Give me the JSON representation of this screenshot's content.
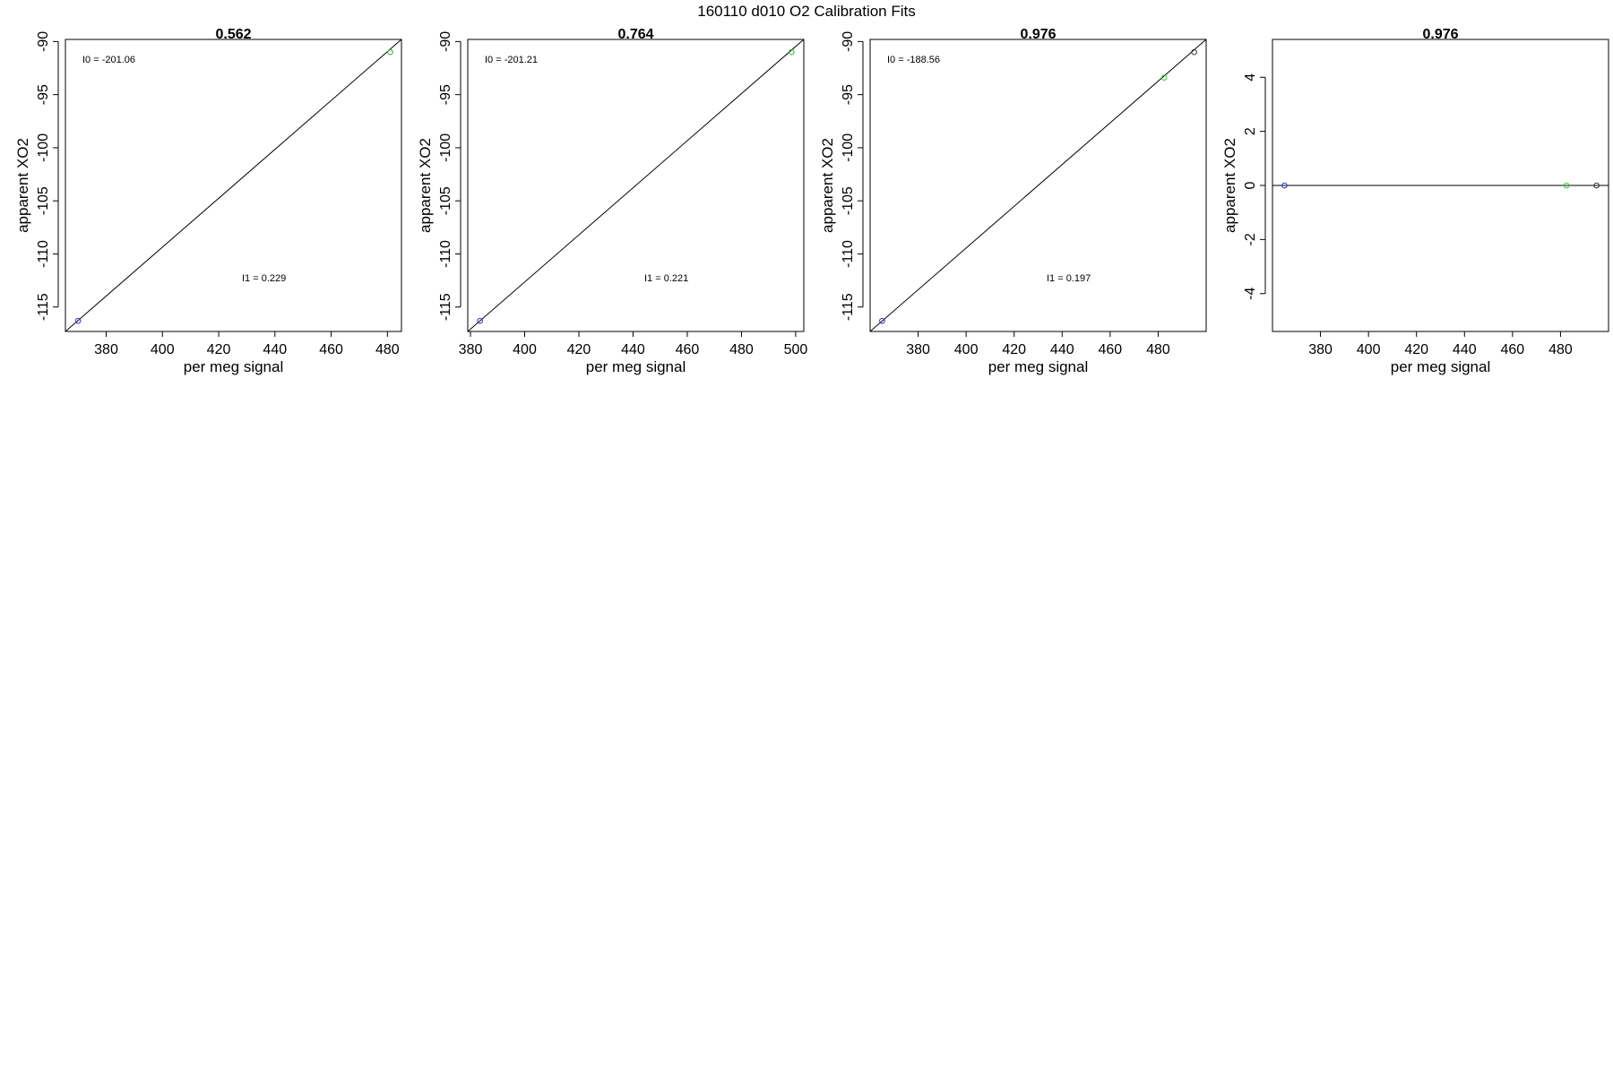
{
  "figure": {
    "title": "160110   d010   O2 Calibration Fits"
  },
  "chart_data": [
    {
      "type": "scatter",
      "title": "0.562",
      "xlabel": "per meg signal",
      "ylabel": "apparent XO2",
      "xlim": [
        365.5,
        485
      ],
      "ylim": [
        -117.3,
        -89.8
      ],
      "xticks": [
        380,
        400,
        420,
        440,
        460,
        480
      ],
      "yticks": [
        -115,
        -110,
        -105,
        -100,
        -95,
        -90
      ],
      "points": [
        {
          "x": 370,
          "y": -116.3,
          "color": "#3333cc"
        },
        {
          "x": 481,
          "y": -91.0,
          "color": "#33aa33"
        }
      ],
      "line": [
        [
          365.5,
          -117.3
        ],
        [
          485,
          -89.8
        ]
      ],
      "annotations": [
        {
          "text": "I0 =  -201.06",
          "at": "top-left"
        },
        {
          "text": "I1 =  0.229",
          "at": "lower-middle"
        }
      ]
    },
    {
      "type": "scatter",
      "title": "0.764",
      "xlabel": "per meg signal",
      "ylabel": "apparent XO2",
      "xlim": [
        379,
        503
      ],
      "ylim": [
        -117.3,
        -89.8
      ],
      "xticks": [
        380,
        400,
        420,
        440,
        460,
        480,
        500
      ],
      "yticks": [
        -115,
        -110,
        -105,
        -100,
        -95,
        -90
      ],
      "points": [
        {
          "x": 383.5,
          "y": -116.3,
          "color": "#3333cc"
        },
        {
          "x": 498.5,
          "y": -91.0,
          "color": "#33aa33"
        }
      ],
      "line": [
        [
          379,
          -117.3
        ],
        [
          503,
          -89.8
        ]
      ],
      "annotations": [
        {
          "text": "I0 =  -201.21",
          "at": "top-left"
        },
        {
          "text": "I1 =  0.221",
          "at": "lower-middle"
        }
      ]
    },
    {
      "type": "scatter",
      "title": "0.976",
      "xlabel": "per meg signal",
      "ylabel": "apparent XO2",
      "xlim": [
        360,
        500
      ],
      "ylim": [
        -117.3,
        -89.8
      ],
      "xticks": [
        380,
        400,
        420,
        440,
        460,
        480
      ],
      "yticks": [
        -115,
        -110,
        -105,
        -100,
        -95,
        -90
      ],
      "points": [
        {
          "x": 365,
          "y": -116.3,
          "color": "#3333cc"
        },
        {
          "x": 482.5,
          "y": -93.4,
          "color": "#33cc33"
        },
        {
          "x": 495,
          "y": -91.0,
          "color": "#333333"
        }
      ],
      "line": [
        [
          360,
          -117.3
        ],
        [
          500,
          -89.8
        ]
      ],
      "annotations": [
        {
          "text": "I0 =  -188.56",
          "at": "top-left"
        },
        {
          "text": "I1 =  0.197",
          "at": "lower-middle"
        }
      ]
    },
    {
      "type": "scatter",
      "title": "0.976",
      "xlabel": "per meg signal",
      "ylabel": "apparent XO2",
      "xlim": [
        360,
        500
      ],
      "ylim": [
        -5.4,
        5.4
      ],
      "xticks": [
        380,
        400,
        420,
        440,
        460,
        480
      ],
      "yticks": [
        -4,
        -2,
        0,
        2,
        4
      ],
      "points": [
        {
          "x": 365,
          "y": 0,
          "color": "#3333cc"
        },
        {
          "x": 482.5,
          "y": 0,
          "color": "#33cc33"
        },
        {
          "x": 495,
          "y": 0,
          "color": "#333333"
        }
      ],
      "line": [
        [
          360,
          0
        ],
        [
          500,
          0
        ]
      ],
      "annotations": []
    }
  ]
}
